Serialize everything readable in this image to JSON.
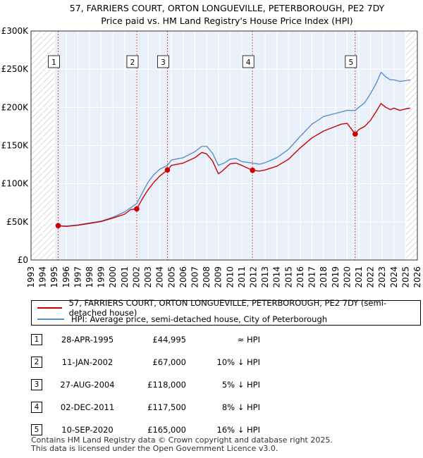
{
  "chart_data": {
    "type": "line",
    "title": "57, FARRIERS COURT, ORTON LONGUEVILLE, PETERBOROUGH, PE2 7DY",
    "subtitle": "Price paid vs. HM Land Registry's House Price Index (HPI)",
    "xlabel": "",
    "ylabel": "",
    "xlim": [
      1993,
      2026
    ],
    "ylim": [
      0,
      300000
    ],
    "x_ticks": [
      1993,
      1994,
      1995,
      1996,
      1997,
      1998,
      1999,
      2000,
      2001,
      2002,
      2003,
      2004,
      2005,
      2006,
      2007,
      2008,
      2009,
      2010,
      2011,
      2012,
      2013,
      2014,
      2015,
      2016,
      2017,
      2018,
      2019,
      2020,
      2021,
      2022,
      2023,
      2024,
      2025,
      2026
    ],
    "y_ticks": [
      {
        "value": 0,
        "label": "£0"
      },
      {
        "value": 50000,
        "label": "£50K"
      },
      {
        "value": 100000,
        "label": "£100K"
      },
      {
        "value": 150000,
        "label": "£150K"
      },
      {
        "value": 200000,
        "label": "£200K"
      },
      {
        "value": 250000,
        "label": "£250K"
      },
      {
        "value": 300000,
        "label": "£300K"
      }
    ],
    "grid": true,
    "series": [
      {
        "name": "57, FARRIERS COURT, ORTON LONGUEVILLE, PETERBOROUGH, PE2 7DY (semi-detached house)",
        "color": "#cc0000",
        "x": [
          1995.32,
          1996.0,
          1997.0,
          1998.0,
          1999.0,
          2000.0,
          2001.0,
          2001.5,
          2002.03,
          2002.5,
          2003.0,
          2003.5,
          2004.0,
          2004.65,
          2005.0,
          2006.0,
          2007.0,
          2007.6,
          2008.0,
          2008.5,
          2009.0,
          2009.3,
          2010.0,
          2010.5,
          2011.0,
          2011.92,
          2012.5,
          2013.0,
          2014.0,
          2015.0,
          2016.0,
          2017.0,
          2018.0,
          2019.0,
          2019.5,
          2020.0,
          2020.69,
          2021.0,
          2021.5,
          2022.0,
          2022.5,
          2022.9,
          2023.3,
          2023.7,
          2024.0,
          2024.5,
          2025.0,
          2025.4
        ],
        "y": [
          44995,
          44000,
          45500,
          48000,
          50500,
          55000,
          60000,
          66000,
          67000,
          80000,
          92000,
          102000,
          110000,
          118000,
          124000,
          127000,
          134000,
          141000,
          139000,
          130000,
          113000,
          116000,
          126000,
          127000,
          124000,
          117500,
          116500,
          118000,
          123000,
          132000,
          147000,
          160000,
          169000,
          175000,
          178000,
          179000,
          165000,
          171000,
          175000,
          183000,
          195000,
          205000,
          200000,
          197000,
          199000,
          196000,
          198000,
          199000
        ]
      },
      {
        "name": "HPI: Average price, semi-detached house, City of Peterborough",
        "color": "#5b8fc7",
        "x": [
          1995.32,
          1996.0,
          1997.0,
          1998.0,
          1999.0,
          2000.0,
          2001.0,
          2002.03,
          2002.5,
          2003.0,
          2003.5,
          2004.0,
          2004.65,
          2005.0,
          2006.0,
          2007.0,
          2007.6,
          2008.0,
          2008.5,
          2009.0,
          2009.5,
          2010.0,
          2010.5,
          2011.0,
          2011.92,
          2012.5,
          2013.0,
          2014.0,
          2015.0,
          2016.0,
          2017.0,
          2018.0,
          2019.0,
          2020.0,
          2020.69,
          2021.0,
          2021.5,
          2022.0,
          2022.5,
          2022.9,
          2023.3,
          2023.7,
          2024.0,
          2024.5,
          2025.0,
          2025.4
        ],
        "y": [
          45000,
          44500,
          46000,
          48500,
          51000,
          56000,
          63000,
          74000,
          88000,
          102000,
          112000,
          119000,
          124000,
          131000,
          134000,
          142000,
          149000,
          149000,
          140000,
          124000,
          127000,
          132000,
          133000,
          129000,
          127000,
          125500,
          127500,
          134000,
          145000,
          162000,
          178000,
          188000,
          192000,
          196000,
          196000,
          200000,
          206000,
          218000,
          232000,
          246000,
          240000,
          236000,
          236000,
          234000,
          235000,
          236000
        ]
      }
    ],
    "sales": [
      {
        "num": "1",
        "x": 1995.32,
        "price": 44995
      },
      {
        "num": "2",
        "x": 2002.03,
        "price": 67000
      },
      {
        "num": "3",
        "x": 2004.65,
        "price": 118000
      },
      {
        "num": "4",
        "x": 2011.92,
        "price": 117500
      },
      {
        "num": "5",
        "x": 2020.69,
        "price": 165000
      }
    ],
    "hatch_regions": [
      [
        1993,
        1995.0
      ],
      [
        2025.0,
        2026
      ]
    ]
  },
  "legend": {
    "property_label": "57, FARRIERS COURT, ORTON LONGUEVILLE, PETERBOROUGH, PE2 7DY (semi-detached house)",
    "hpi_label": "HPI: Average price, semi-detached house, City of Peterborough",
    "property_color": "#cc0000",
    "hpi_color": "#5b8fc7"
  },
  "table": [
    {
      "num": "1",
      "date": "28-APR-1995",
      "price": "£44,995",
      "hpi": "≈ HPI"
    },
    {
      "num": "2",
      "date": "11-JAN-2002",
      "price": "£67,000",
      "hpi": "10% ↓ HPI"
    },
    {
      "num": "3",
      "date": "27-AUG-2004",
      "price": "£118,000",
      "hpi": "5% ↓ HPI"
    },
    {
      "num": "4",
      "date": "02-DEC-2011",
      "price": "£117,500",
      "hpi": "8% ↓ HPI"
    },
    {
      "num": "5",
      "date": "10-SEP-2020",
      "price": "£165,000",
      "hpi": "16% ↓ HPI"
    }
  ],
  "footer": {
    "line1": "Contains HM Land Registry data © Crown copyright and database right 2025.",
    "line2": "This data is licensed under the Open Government Licence v3.0."
  }
}
